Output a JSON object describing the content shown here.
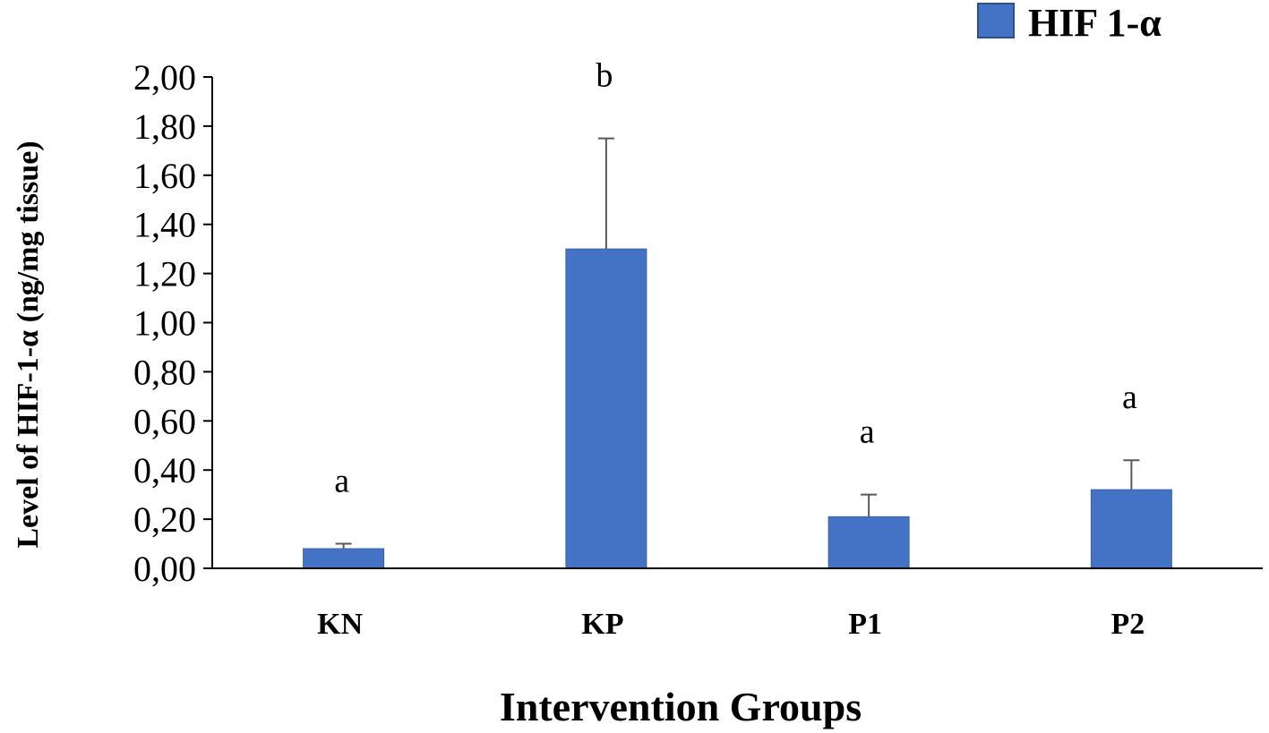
{
  "chart_data": {
    "type": "bar",
    "categories": [
      "KN",
      "KP",
      "P1",
      "P2"
    ],
    "series": [
      {
        "name": "HIF 1-α",
        "values": [
          0.08,
          1.3,
          0.21,
          0.32
        ],
        "error_plus": [
          0.02,
          0.45,
          0.09,
          0.12
        ],
        "significance": [
          "a",
          "b",
          "a",
          "a"
        ]
      }
    ],
    "xlabel": "Intervention Groups",
    "ylabel": "Level of  HIF-1-α (ng/mg tissue)",
    "ylim": [
      0,
      2.0
    ],
    "yticks": [
      "0,00",
      "0,20",
      "0,40",
      "0,60",
      "0,80",
      "1,00",
      "1,20",
      "1,40",
      "1,60",
      "1,80",
      "2,00"
    ],
    "grid": false,
    "legend_position": "top-right",
    "colors": {
      "bar": "#4472C4",
      "bar_stroke": "#3A62A8",
      "error_bar": "#595959",
      "axis": "#000000"
    }
  }
}
